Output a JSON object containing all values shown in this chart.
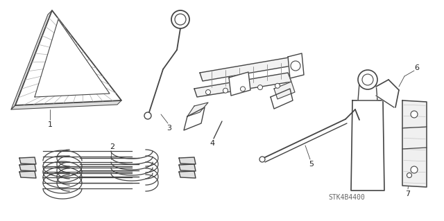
{
  "background_color": "#ffffff",
  "line_color": "#444444",
  "label_color": "#222222",
  "fig_width": 6.4,
  "fig_height": 3.19,
  "dpi": 100,
  "watermark": "STK4B4400"
}
